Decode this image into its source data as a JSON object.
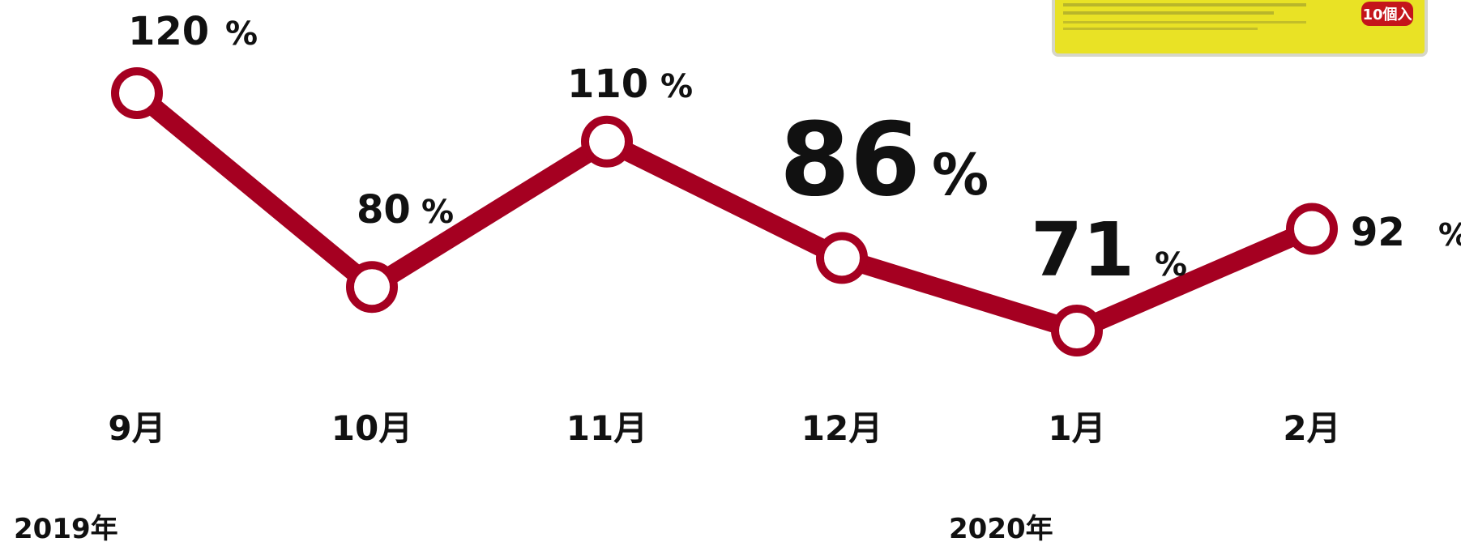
{
  "chart_data": {
    "type": "line",
    "categories": [
      "9月",
      "10月",
      "11月",
      "12月",
      "1月",
      "2月"
    ],
    "values": [
      120,
      80,
      110,
      86,
      71,
      92
    ],
    "unit": "%",
    "color": "#a50021",
    "annotations": [
      "2019年",
      "2020年"
    ],
    "badge": "10個入"
  }
}
